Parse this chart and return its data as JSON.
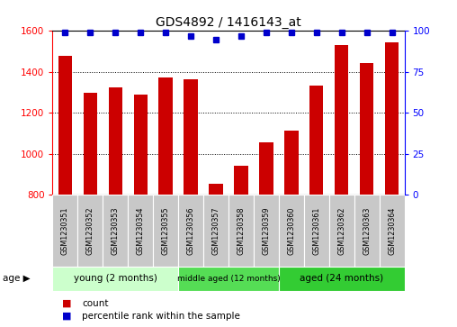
{
  "title": "GDS4892 / 1416143_at",
  "samples": [
    "GSM1230351",
    "GSM1230352",
    "GSM1230353",
    "GSM1230354",
    "GSM1230355",
    "GSM1230356",
    "GSM1230357",
    "GSM1230358",
    "GSM1230359",
    "GSM1230360",
    "GSM1230361",
    "GSM1230362",
    "GSM1230363",
    "GSM1230364"
  ],
  "counts": [
    1480,
    1300,
    1325,
    1290,
    1375,
    1365,
    855,
    940,
    1055,
    1115,
    1335,
    1530,
    1445,
    1545
  ],
  "percentiles": [
    99,
    99,
    99,
    99,
    99,
    97,
    95,
    97,
    99,
    99,
    99,
    99,
    99,
    99
  ],
  "ylim_left": [
    800,
    1600
  ],
  "ylim_right": [
    0,
    100
  ],
  "yticks_left": [
    800,
    1000,
    1200,
    1400,
    1600
  ],
  "yticks_right": [
    0,
    25,
    50,
    75,
    100
  ],
  "groups": [
    {
      "label": "young (2 months)",
      "start": 0,
      "end": 5,
      "color": "#ccffcc"
    },
    {
      "label": "middle aged (12 months)",
      "start": 5,
      "end": 9,
      "color": "#55dd55"
    },
    {
      "label": "aged (24 months)",
      "start": 9,
      "end": 14,
      "color": "#33cc33"
    }
  ],
  "bar_color": "#cc0000",
  "dot_color": "#0000cc",
  "cell_color": "#c8c8c8",
  "age_label": "age",
  "legend_count": "count",
  "legend_percentile": "percentile rank within the sample",
  "title_fontsize": 10
}
